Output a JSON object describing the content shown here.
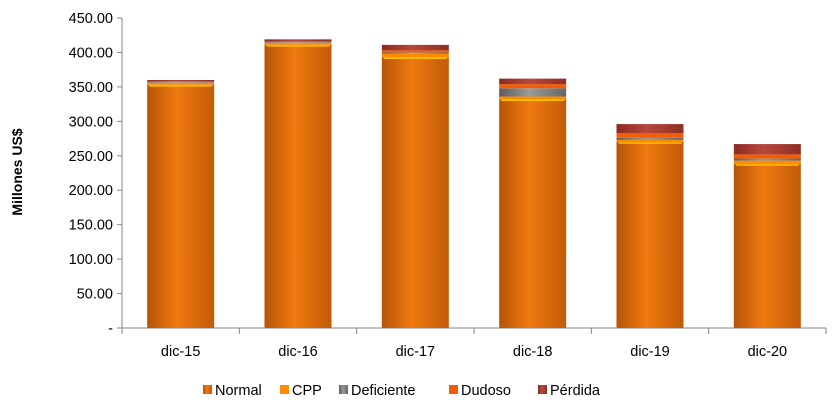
{
  "chart_data": {
    "type": "bar",
    "stacked": true,
    "categories": [
      "dic-15",
      "dic-16",
      "dic-17",
      "dic-18",
      "dic-19",
      "dic-20"
    ],
    "series": [
      {
        "name": "Normal",
        "color": "#E46C0A",
        "values": [
          353,
          411,
          393,
          332,
          270,
          238
        ]
      },
      {
        "name": "CPP",
        "color": "#FF8C00",
        "values": [
          3,
          3,
          5,
          4,
          3,
          5
        ]
      },
      {
        "name": "Deficiente",
        "color": "#7F7F7F",
        "values": [
          1,
          1,
          2,
          12,
          3,
          3
        ]
      },
      {
        "name": "Dudoso",
        "color": "#F25C05",
        "values": [
          1,
          1,
          3,
          6,
          7,
          6
        ]
      },
      {
        "name": "Pérdida",
        "color": "#A0352B",
        "values": [
          2,
          3,
          8,
          8,
          13,
          15
        ]
      }
    ],
    "ylabel": "Millones US$",
    "xlabel": "",
    "ylim": [
      0,
      450
    ],
    "yticks": [
      "-",
      "50.00",
      "100.00",
      "150.00",
      "200.00",
      "250.00",
      "300.00",
      "350.00",
      "400.00",
      "450.00"
    ],
    "grid": false,
    "legend_position": "bottom"
  }
}
